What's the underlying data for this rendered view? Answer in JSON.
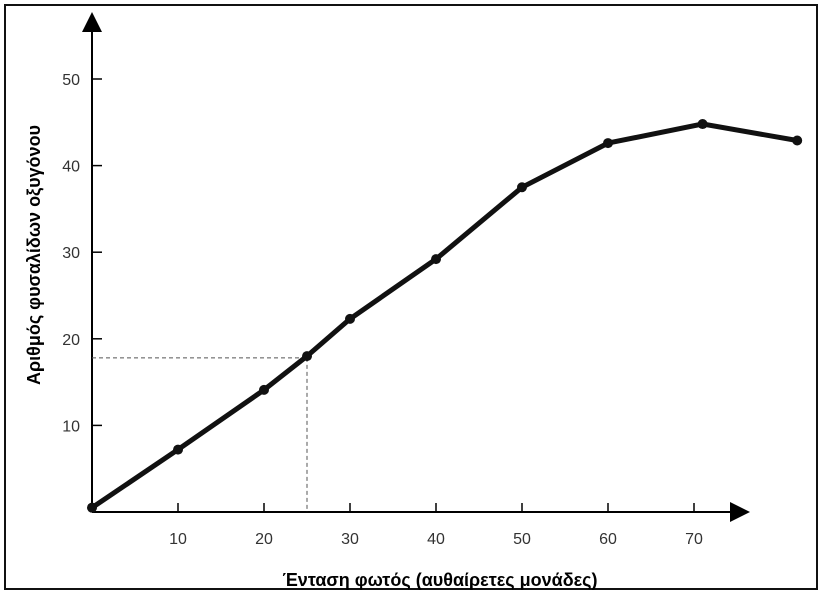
{
  "chart_data": {
    "type": "line",
    "title": "",
    "xlabel": "Ένταση φωτός (αυθαίρετες μονάδες)",
    "ylabel": "Αριθμός φυσαλίδων οξυγόνου",
    "xlim": [
      0,
      75
    ],
    "ylim": [
      0,
      55
    ],
    "x_ticks": [
      10,
      20,
      30,
      40,
      50,
      60,
      70
    ],
    "y_ticks": [
      10,
      20,
      30,
      40,
      50
    ],
    "grid": false,
    "series": [
      {
        "color": "#111111",
        "x": [
          0,
          10,
          20,
          25,
          30,
          40,
          50,
          60,
          71,
          82
        ],
        "y": [
          0.5,
          7.2,
          14.1,
          18.0,
          22.3,
          29.2,
          37.5,
          42.6,
          44.8,
          42.9
        ]
      }
    ],
    "annotations": [
      {
        "type": "dashed-guide",
        "x": 25,
        "y": 17.8
      }
    ]
  }
}
